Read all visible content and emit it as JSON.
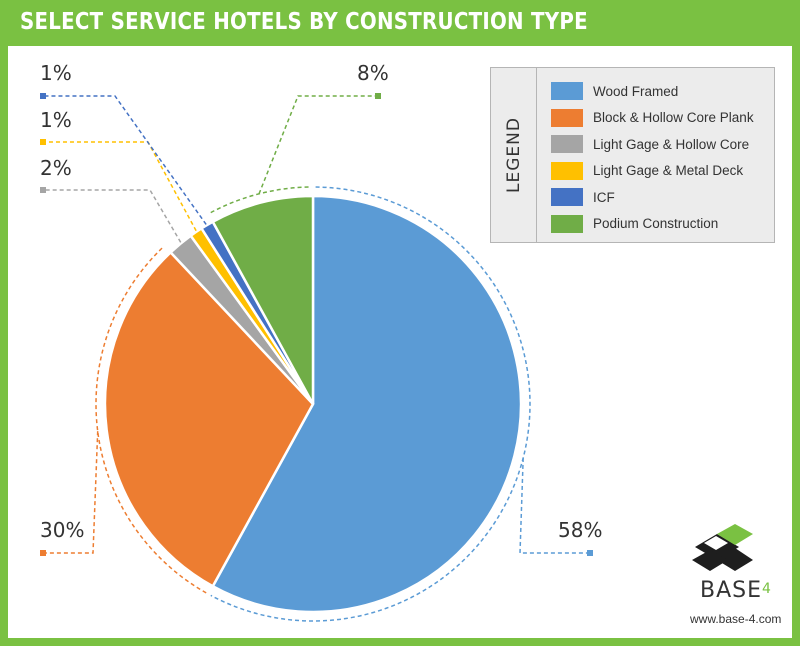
{
  "chart_data": {
    "type": "pie",
    "title": "SELECT SERVICE HOTELS BY CONSTRUCTION TYPE",
    "legend_title": "LEGEND",
    "legend_position": "top-right",
    "slices": [
      {
        "label": "Wood Framed",
        "value": 58,
        "value_label": "58%",
        "color": "#5b9bd5"
      },
      {
        "label": "Block & Hollow Core Plank",
        "value": 30,
        "value_label": "30%",
        "color": "#ed7d31"
      },
      {
        "label": "Light Gage & Hollow Core",
        "value": 2,
        "value_label": "2%",
        "color": "#a5a5a5"
      },
      {
        "label": "Light Gage & Metal Deck",
        "value": 1,
        "value_label": "1%",
        "color": "#ffc000"
      },
      {
        "label": "ICF",
        "value": 1,
        "value_label": "1%",
        "color": "#4472c4"
      },
      {
        "label": "Podium Construction",
        "value": 8,
        "value_label": "8%",
        "color": "#70ad47"
      }
    ]
  },
  "brand": {
    "name": "BASE",
    "superscript": "4",
    "url": "www.base-4.com",
    "accent_color": "#7ac142"
  }
}
